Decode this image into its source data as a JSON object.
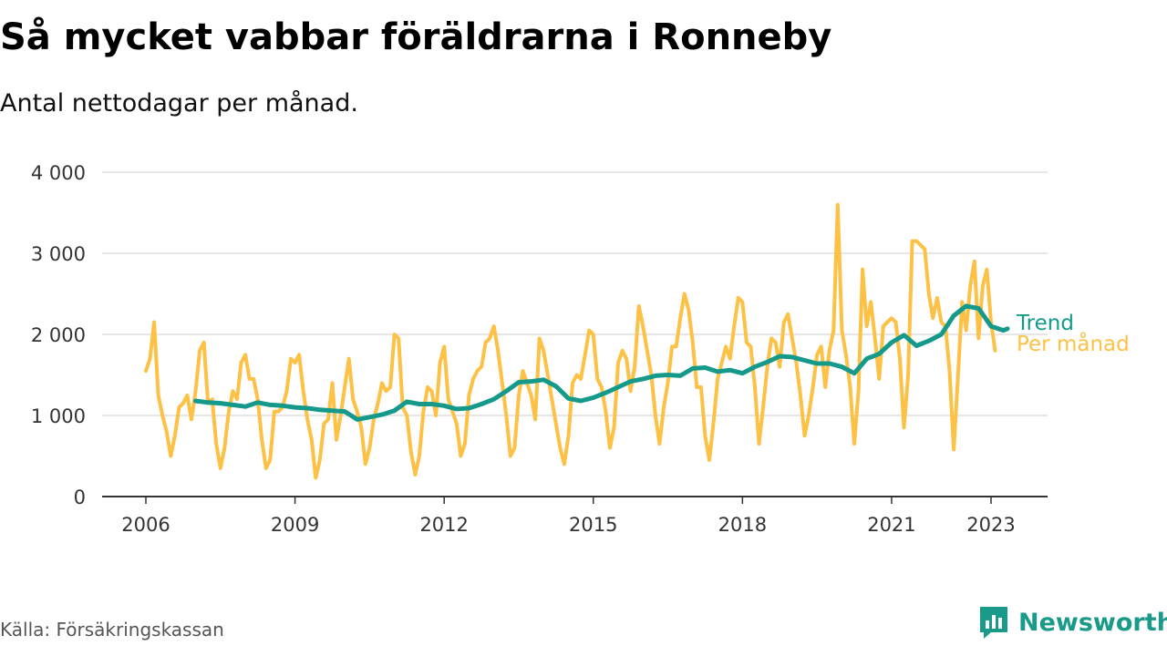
{
  "header": {
    "title": "Så mycket vabbar föräldrarna i Ronneby",
    "subtitle": "Antal nettodagar per månad."
  },
  "footer": {
    "source": "Källa: Försäkringskassan",
    "brand": "Newsworthy"
  },
  "colors": {
    "monthly": "#fdc145",
    "trend": "#14998a",
    "grid": "#dddddd",
    "axis": "#333333",
    "brand": "#1a9b8a"
  },
  "chart_data": {
    "type": "line",
    "title": "Så mycket vabbar föräldrarna i Ronneby",
    "subtitle": "Antal nettodagar per månad.",
    "xlabel": "",
    "ylabel": "",
    "xlim": [
      2006,
      2024
    ],
    "ylim": [
      0,
      4000
    ],
    "x_ticks": [
      2006,
      2009,
      2012,
      2015,
      2018,
      2021,
      2023
    ],
    "x_tick_labels": [
      "2006",
      "2009",
      "2012",
      "2015",
      "2018",
      "2021",
      "2023"
    ],
    "y_ticks": [
      0,
      1000,
      2000,
      3000,
      4000
    ],
    "y_tick_labels": [
      "0",
      "1 000",
      "2 000",
      "3 000",
      "4 000"
    ],
    "grid": true,
    "legend": "inline-right",
    "series": [
      {
        "name": "Per månad",
        "color": "#fdc145",
        "x_start": 2006.0,
        "step": 0.08333,
        "values": [
          1550,
          1700,
          2150,
          1250,
          1000,
          800,
          500,
          750,
          1100,
          1150,
          1250,
          950,
          1300,
          1800,
          1900,
          1150,
          1200,
          650,
          350,
          600,
          1050,
          1300,
          1200,
          1650,
          1750,
          1450,
          1450,
          1200,
          700,
          350,
          450,
          1050,
          1050,
          1100,
          1300,
          1700,
          1650,
          1750,
          1300,
          950,
          700,
          230,
          450,
          900,
          950,
          1400,
          700,
          1000,
          1350,
          1700,
          1200,
          1050,
          850,
          400,
          600,
          950,
          1150,
          1400,
          1300,
          1350,
          2000,
          1950,
          1100,
          1000,
          550,
          270,
          500,
          1050,
          1350,
          1300,
          1000,
          1650,
          1850,
          1200,
          1050,
          900,
          500,
          650,
          1250,
          1450,
          1550,
          1600,
          1900,
          1950,
          2100,
          1800,
          1400,
          1000,
          500,
          600,
          1250,
          1550,
          1400,
          1250,
          950,
          1950,
          1800,
          1500,
          1200,
          900,
          600,
          400,
          750,
          1400,
          1500,
          1450,
          1750,
          2050,
          2000,
          1450,
          1350,
          1050,
          600,
          850,
          1650,
          1800,
          1700,
          1300,
          1600,
          2350,
          2100,
          1800,
          1500,
          1000,
          650,
          1100,
          1400,
          1850,
          1850,
          2200,
          2500,
          2300,
          1900,
          1350,
          1350,
          750,
          450,
          900,
          1450,
          1650,
          1850,
          1700,
          2100,
          2450,
          2400,
          1900,
          1850,
          1350,
          650,
          1100,
          1600,
          1950,
          1900,
          1600,
          2150,
          2250,
          1950,
          1650,
          1250,
          750,
          1000,
          1350,
          1750,
          1850,
          1350,
          1800,
          2050,
          3600,
          2050,
          1750,
          1350,
          650,
          1300,
          2800,
          2100,
          2400,
          1950,
          1450,
          2100,
          2150,
          2200,
          2150,
          1700,
          850,
          1500,
          3150,
          3150,
          3100,
          3050,
          2500,
          2200,
          2450,
          2150,
          2100,
          1550,
          580,
          1450,
          2400,
          2050,
          2600,
          2900,
          1950,
          2600,
          2800,
          2150,
          1800
        ]
      },
      {
        "name": "Trend",
        "color": "#14998a",
        "x": [
          2007.0,
          2007.25,
          2007.5,
          2007.75,
          2008.0,
          2008.25,
          2008.5,
          2008.75,
          2009.0,
          2009.25,
          2009.5,
          2009.75,
          2010.0,
          2010.25,
          2010.5,
          2010.75,
          2011.0,
          2011.25,
          2011.5,
          2011.75,
          2012.0,
          2012.25,
          2012.5,
          2012.75,
          2013.0,
          2013.25,
          2013.5,
          2013.75,
          2014.0,
          2014.25,
          2014.5,
          2014.75,
          2015.0,
          2015.25,
          2015.5,
          2015.75,
          2016.0,
          2016.25,
          2016.5,
          2016.75,
          2017.0,
          2017.25,
          2017.5,
          2017.75,
          2018.0,
          2018.25,
          2018.5,
          2018.75,
          2019.0,
          2019.25,
          2019.5,
          2019.75,
          2020.0,
          2020.25,
          2020.5,
          2020.75,
          2021.0,
          2021.25,
          2021.5,
          2021.75,
          2022.0,
          2022.25,
          2022.5,
          2022.75,
          2023.0,
          2023.25,
          2023.33
        ],
        "values": [
          1180,
          1160,
          1150,
          1130,
          1110,
          1160,
          1130,
          1120,
          1100,
          1090,
          1070,
          1060,
          1050,
          950,
          980,
          1010,
          1060,
          1170,
          1140,
          1140,
          1120,
          1080,
          1090,
          1140,
          1200,
          1300,
          1410,
          1420,
          1440,
          1360,
          1210,
          1180,
          1220,
          1280,
          1350,
          1420,
          1450,
          1490,
          1500,
          1490,
          1580,
          1590,
          1540,
          1560,
          1520,
          1600,
          1660,
          1730,
          1720,
          1680,
          1640,
          1640,
          1600,
          1520,
          1700,
          1760,
          1900,
          1990,
          1860,
          1920,
          2000,
          2230,
          2350,
          2320,
          2100,
          2050,
          2070
        ]
      }
    ]
  }
}
